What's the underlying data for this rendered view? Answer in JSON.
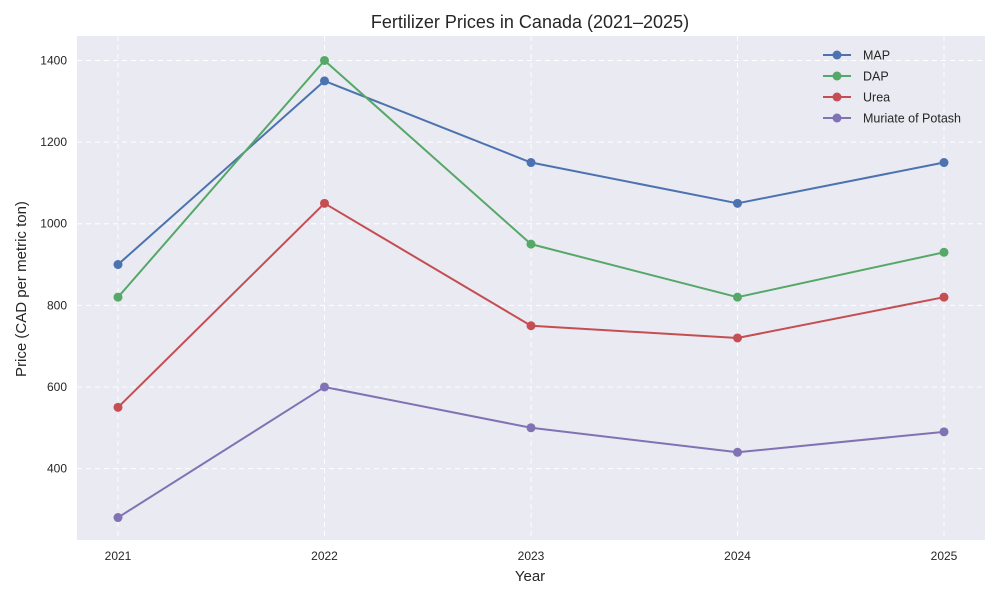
{
  "chart_data": {
    "type": "line",
    "title": "Fertilizer Prices in Canada (2021–2025)",
    "xlabel": "Year",
    "ylabel": "Price (CAD per metric ton)",
    "categories": [
      "2021",
      "2022",
      "2023",
      "2024",
      "2025"
    ],
    "ylim": [
      225,
      1460
    ],
    "yticks": [
      400,
      600,
      800,
      1000,
      1200,
      1400
    ],
    "grid": true,
    "legend_position": "top-right",
    "series": [
      {
        "name": "MAP",
        "color": "#4c72b0",
        "values": [
          900,
          1350,
          1150,
          1050,
          1150
        ]
      },
      {
        "name": "DAP",
        "color": "#55a868",
        "values": [
          820,
          1400,
          950,
          820,
          930
        ]
      },
      {
        "name": "Urea",
        "color": "#c44e52",
        "values": [
          550,
          1050,
          750,
          720,
          820
        ]
      },
      {
        "name": "Muriate of Potash",
        "color": "#8172b3",
        "values": [
          280,
          600,
          500,
          440,
          490
        ]
      }
    ]
  }
}
